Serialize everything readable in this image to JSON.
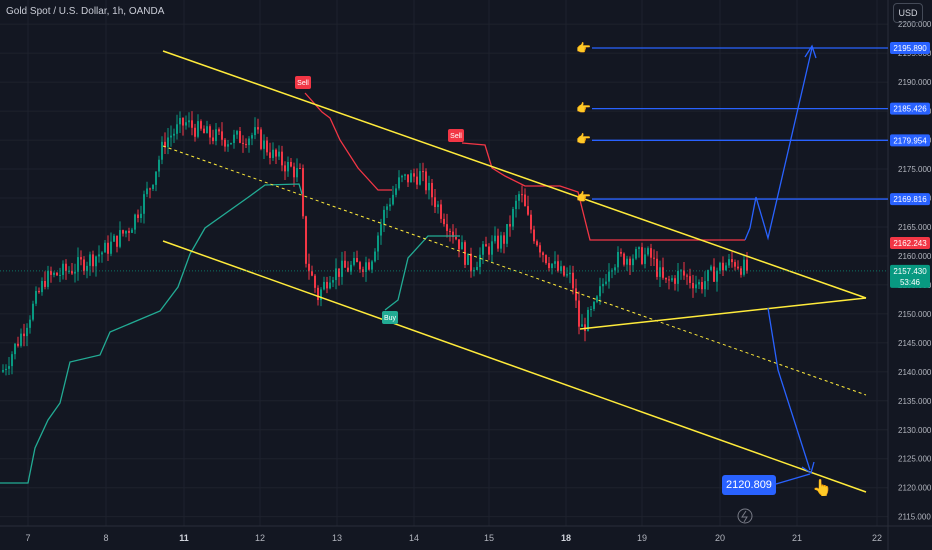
{
  "header": {
    "title": "Gold Spot / U.S. Dollar, 1h, OANDA",
    "currency_button": "USD"
  },
  "chart_data": {
    "type": "candlestick",
    "ylim": [
      2112,
      2202
    ],
    "y_ticks": [
      2115.0,
      2120.0,
      2125.0,
      2130.0,
      2135.0,
      2140.0,
      2145.0,
      2150.0,
      2155.0,
      2160.0,
      2165.0,
      2170.0,
      2175.0,
      2180.0,
      2185.0,
      2190.0,
      2195.0,
      2200.0
    ],
    "x_ticks": [
      {
        "label": "7",
        "bold": false
      },
      {
        "label": "8",
        "bold": false
      },
      {
        "label": "11",
        "bold": true
      },
      {
        "label": "12",
        "bold": false
      },
      {
        "label": "13",
        "bold": false
      },
      {
        "label": "14",
        "bold": false
      },
      {
        "label": "15",
        "bold": false
      },
      {
        "label": "18",
        "bold": true
      },
      {
        "label": "19",
        "bold": false
      },
      {
        "label": "20",
        "bold": false
      },
      {
        "label": "21",
        "bold": false
      },
      {
        "label": "22",
        "bold": false
      }
    ],
    "colors": {
      "up": "#089981",
      "down": "#f23645",
      "trend": "#ffeb3b",
      "projection": "#2962ff",
      "stop_line": "#f23645",
      "support": "#22ab94"
    },
    "target_levels": [
      2195.89,
      2185.426,
      2179.954,
      2169.816
    ],
    "down_target": 2120.809,
    "last_price": 2157.43,
    "countdown": "53:46",
    "red_line_level": 2162.243,
    "signals": [
      {
        "label": "Sell",
        "kind": "sell"
      },
      {
        "label": "Sell",
        "kind": "sell"
      },
      {
        "label": "Buy",
        "kind": "buy"
      }
    ],
    "price_labels": {
      "t1": "2195.890",
      "t2": "2185.426",
      "t3": "2179.954",
      "t4": "2169.816",
      "red": "2162.243",
      "last": "2157.430",
      "countdown": "53:46",
      "target": "2120.809"
    }
  }
}
